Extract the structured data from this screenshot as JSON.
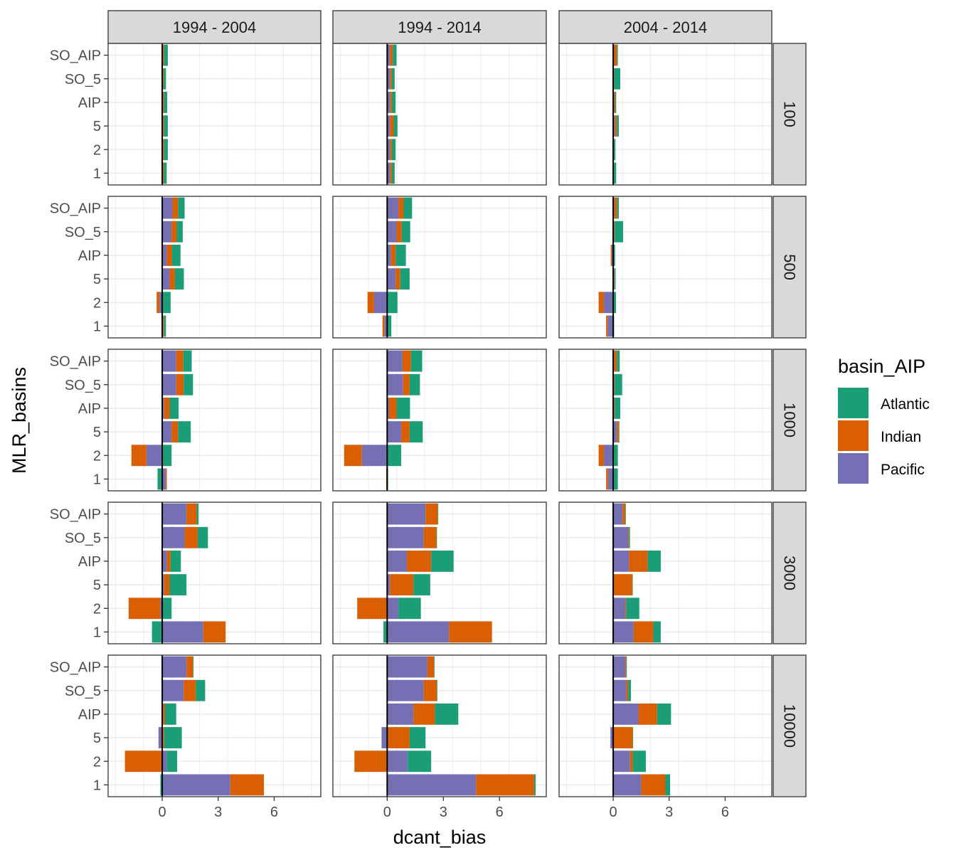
{
  "chart_data": {
    "type": "bar",
    "orientation": "horizontal",
    "stacked": true,
    "xlabel": "dcant_bias",
    "ylabel": "MLR_basins",
    "xlim": [
      -2.9,
      8.5
    ],
    "x_ticks": [
      0,
      3,
      6
    ],
    "grid": true,
    "legend": {
      "title": "basin_AIP",
      "position": "right",
      "items": [
        "Atlantic",
        "Indian",
        "Pacific"
      ]
    },
    "colors": {
      "Atlantic": "#1b9e77",
      "Indian": "#d95f02",
      "Pacific": "#7570b3"
    },
    "categories": [
      "SO_AIP",
      "SO_5",
      "AIP",
      "5",
      "2",
      "1"
    ],
    "series_order": [
      "Pacific",
      "Indian",
      "Atlantic"
    ],
    "col_facets": [
      "1994 - 2004",
      "1994 - 2014",
      "2004 - 2014"
    ],
    "row_facets": [
      "100",
      "500",
      "1000",
      "3000",
      "10000"
    ],
    "panels": [
      {
        "row": "100",
        "col": "1994 - 2004",
        "values": {
          "SO_AIP": {
            "Pacific": 0.03,
            "Indian": 0.07,
            "Atlantic": 0.2
          },
          "SO_5": {
            "Pacific": 0.03,
            "Indian": 0.05,
            "Atlantic": 0.12
          },
          "AIP": {
            "Pacific": 0.03,
            "Indian": 0.07,
            "Atlantic": 0.17
          },
          "5": {
            "Pacific": 0.03,
            "Indian": 0.07,
            "Atlantic": 0.2
          },
          "2": {
            "Pacific": 0.03,
            "Indian": 0.07,
            "Atlantic": 0.2
          },
          "1": {
            "Pacific": 0.03,
            "Indian": 0.06,
            "Atlantic": 0.15
          }
        }
      },
      {
        "row": "100",
        "col": "1994 - 2014",
        "values": {
          "SO_AIP": {
            "Pacific": 0.15,
            "Indian": 0.15,
            "Atlantic": 0.2
          },
          "SO_5": {
            "Pacific": 0.15,
            "Indian": 0.1,
            "Atlantic": 0.15
          },
          "AIP": {
            "Pacific": 0.15,
            "Indian": 0.1,
            "Atlantic": 0.2
          },
          "5": {
            "Pacific": 0.15,
            "Indian": 0.2,
            "Atlantic": 0.2
          },
          "2": {
            "Pacific": 0.15,
            "Indian": 0.1,
            "Atlantic": 0.2
          },
          "1": {
            "Pacific": 0.15,
            "Indian": 0.1,
            "Atlantic": 0.15
          }
        }
      },
      {
        "row": "100",
        "col": "2004 - 2014",
        "values": {
          "SO_AIP": {
            "Pacific": 0.03,
            "Indian": 0.17,
            "Atlantic": 0.05
          },
          "SO_5": {
            "Pacific": 0.03,
            "Indian": 0.03,
            "Atlantic": 0.32
          },
          "AIP": {
            "Pacific": 0.03,
            "Indian": 0.08,
            "Atlantic": 0.05
          },
          "5": {
            "Pacific": 0.1,
            "Indian": 0.1,
            "Atlantic": 0.1
          },
          "2": {
            "Pacific": 0.02,
            "Indian": 0.02,
            "Atlantic": 0.08
          },
          "1": {
            "Pacific": 0.02,
            "Indian": 0.02,
            "Atlantic": 0.12
          }
        }
      },
      {
        "row": "500",
        "col": "1994 - 2004",
        "values": {
          "SO_AIP": {
            "Pacific": 0.55,
            "Indian": 0.3,
            "Atlantic": 0.35
          },
          "SO_5": {
            "Pacific": 0.5,
            "Indian": 0.28,
            "Atlantic": 0.32
          },
          "AIP": {
            "Pacific": 0.25,
            "Indian": 0.28,
            "Atlantic": 0.45
          },
          "5": {
            "Pacific": 0.4,
            "Indian": 0.28,
            "Atlantic": 0.48
          },
          "2": {
            "Pacific": -0.15,
            "Indian": -0.15,
            "Atlantic": 0.45
          },
          "1": {
            "Pacific": 0.05,
            "Indian": 0.05,
            "Atlantic": 0.1
          }
        }
      },
      {
        "row": "500",
        "col": "1994 - 2014",
        "values": {
          "SO_AIP": {
            "Pacific": 0.6,
            "Indian": 0.28,
            "Atlantic": 0.45
          },
          "SO_5": {
            "Pacific": 0.5,
            "Indian": 0.28,
            "Atlantic": 0.45
          },
          "AIP": {
            "Pacific": 0.2,
            "Indian": 0.25,
            "Atlantic": 0.55
          },
          "5": {
            "Pacific": 0.45,
            "Indian": 0.25,
            "Atlantic": 0.5
          },
          "2": {
            "Pacific": -0.7,
            "Indian": -0.35,
            "Atlantic": 0.55
          },
          "1": {
            "Pacific": -0.15,
            "Indian": -0.1,
            "Atlantic": 0.22
          }
        }
      },
      {
        "row": "500",
        "col": "2004 - 2014",
        "values": {
          "SO_AIP": {
            "Pacific": 0.05,
            "Indian": 0.15,
            "Atlantic": 0.1
          },
          "SO_5": {
            "Pacific": 0.03,
            "Indian": 0.05,
            "Atlantic": 0.45
          },
          "AIP": {
            "Pacific": -0.08,
            "Indian": -0.05,
            "Atlantic": 0.1
          },
          "5": {
            "Pacific": 0.05,
            "Indian": 0.03,
            "Atlantic": 0.05
          },
          "2": {
            "Pacific": -0.5,
            "Indian": -0.28,
            "Atlantic": 0.15
          },
          "1": {
            "Pacific": -0.3,
            "Indian": -0.08,
            "Atlantic": 0.05
          }
        }
      },
      {
        "row": "1000",
        "col": "1994 - 2004",
        "values": {
          "SO_AIP": {
            "Pacific": 0.75,
            "Indian": 0.38,
            "Atlantic": 0.45
          },
          "SO_5": {
            "Pacific": 0.75,
            "Indian": 0.4,
            "Atlantic": 0.5
          },
          "AIP": {
            "Pacific": 0.1,
            "Indian": 0.3,
            "Atlantic": 0.48
          },
          "5": {
            "Pacific": 0.5,
            "Indian": 0.35,
            "Atlantic": 0.68
          },
          "2": {
            "Pacific": -0.85,
            "Indian": -0.8,
            "Atlantic": 0.5
          },
          "1": {
            "Pacific": 0.2,
            "Indian": 0.05,
            "Atlantic": -0.25
          }
        }
      },
      {
        "row": "1000",
        "col": "1994 - 2014",
        "values": {
          "SO_AIP": {
            "Pacific": 0.82,
            "Indian": 0.45,
            "Atlantic": 0.6
          },
          "SO_5": {
            "Pacific": 0.85,
            "Indian": 0.35,
            "Atlantic": 0.55
          },
          "AIP": {
            "Pacific": 0.1,
            "Indian": 0.4,
            "Atlantic": 0.72
          },
          "5": {
            "Pacific": 0.75,
            "Indian": 0.45,
            "Atlantic": 0.7
          },
          "2": {
            "Pacific": -1.35,
            "Indian": -0.95,
            "Atlantic": 0.75
          },
          "1": {
            "Pacific": 0.03,
            "Indian": -0.05,
            "Atlantic": 0.02
          }
        }
      },
      {
        "row": "1000",
        "col": "2004 - 2014",
        "values": {
          "SO_AIP": {
            "Pacific": 0.05,
            "Indian": 0.15,
            "Atlantic": 0.15
          },
          "SO_5": {
            "Pacific": 0.03,
            "Indian": 0.05,
            "Atlantic": 0.4
          },
          "AIP": {
            "Pacific": 0.03,
            "Indian": 0.05,
            "Atlantic": 0.3
          },
          "5": {
            "Pacific": 0.2,
            "Indian": 0.1,
            "Atlantic": 0.03
          },
          "2": {
            "Pacific": -0.5,
            "Indian": -0.28,
            "Atlantic": 0.25
          },
          "1": {
            "Pacific": -0.28,
            "Indian": -0.1,
            "Atlantic": 0.25
          }
        }
      },
      {
        "row": "3000",
        "col": "1994 - 2004",
        "values": {
          "SO_AIP": {
            "Pacific": 1.3,
            "Indian": 0.55,
            "Atlantic": 0.1
          },
          "SO_5": {
            "Pacific": 1.2,
            "Indian": 0.7,
            "Atlantic": 0.55
          },
          "AIP": {
            "Pacific": 0.25,
            "Indian": 0.2,
            "Atlantic": 0.55
          },
          "5": {
            "Pacific": 0.1,
            "Indian": 0.3,
            "Atlantic": 0.9
          },
          "2": {
            "Pacific": -0.1,
            "Indian": -1.7,
            "Atlantic": 0.5
          },
          "1": {
            "Pacific": 2.2,
            "Indian": 1.2,
            "Atlantic": -0.55
          }
        }
      },
      {
        "row": "3000",
        "col": "1994 - 2014",
        "values": {
          "SO_AIP": {
            "Pacific": 2.05,
            "Indian": 0.65,
            "Atlantic": 0.03
          },
          "SO_5": {
            "Pacific": 1.95,
            "Indian": 0.68,
            "Atlantic": 0.03
          },
          "AIP": {
            "Pacific": 1.05,
            "Indian": 1.3,
            "Atlantic": 1.2
          },
          "5": {
            "Pacific": 0.15,
            "Indian": 1.25,
            "Atlantic": 0.9
          },
          "2": {
            "Pacific": 0.6,
            "Indian": -1.6,
            "Atlantic": 1.2
          },
          "1": {
            "Pacific": 3.3,
            "Indian": 2.3,
            "Atlantic": -0.2
          }
        }
      },
      {
        "row": "3000",
        "col": "2004 - 2014",
        "values": {
          "SO_AIP": {
            "Pacific": 0.5,
            "Indian": 0.15,
            "Atlantic": 0.03
          },
          "SO_5": {
            "Pacific": 0.8,
            "Indian": 0.05,
            "Atlantic": 0.05
          },
          "AIP": {
            "Pacific": 0.85,
            "Indian": 1.0,
            "Atlantic": 0.7
          },
          "5": {
            "Pacific": 0.03,
            "Indian": 1.0,
            "Atlantic": 0.02
          },
          "2": {
            "Pacific": 0.65,
            "Indian": 0.05,
            "Atlantic": 0.7
          },
          "1": {
            "Pacific": 1.1,
            "Indian": 1.05,
            "Atlantic": 0.4
          }
        }
      },
      {
        "row": "10000",
        "col": "1994 - 2004",
        "values": {
          "SO_AIP": {
            "Pacific": 1.3,
            "Indian": 0.35,
            "Atlantic": 0.03
          },
          "SO_5": {
            "Pacific": 1.15,
            "Indian": 0.65,
            "Atlantic": 0.5
          },
          "AIP": {
            "Pacific": 0.05,
            "Indian": 0.1,
            "Atlantic": 0.6
          },
          "5": {
            "Pacific": -0.2,
            "Indian": 0.1,
            "Atlantic": 0.95
          },
          "2": {
            "Pacific": 0.25,
            "Indian": -2.0,
            "Atlantic": 0.55
          },
          "1": {
            "Pacific": 3.65,
            "Indian": 1.8,
            "Atlantic": -0.1
          }
        }
      },
      {
        "row": "10000",
        "col": "1994 - 2014",
        "values": {
          "SO_AIP": {
            "Pacific": 2.15,
            "Indian": 0.35,
            "Atlantic": 0.03
          },
          "SO_5": {
            "Pacific": 1.95,
            "Indian": 0.7,
            "Atlantic": 0.03
          },
          "AIP": {
            "Pacific": 1.4,
            "Indian": 1.15,
            "Atlantic": 1.25
          },
          "5": {
            "Pacific": -0.3,
            "Indian": 1.2,
            "Atlantic": 0.85
          },
          "2": {
            "Pacific": 1.1,
            "Indian": -1.75,
            "Atlantic": 1.25
          },
          "1": {
            "Pacific": 4.75,
            "Indian": 3.1,
            "Atlantic": 0.08
          }
        }
      },
      {
        "row": "10000",
        "col": "2004 - 2014",
        "values": {
          "SO_AIP": {
            "Pacific": 0.65,
            "Indian": 0.05,
            "Atlantic": 0.03
          },
          "SO_5": {
            "Pacific": 0.7,
            "Indian": 0.1,
            "Atlantic": 0.15
          },
          "AIP": {
            "Pacific": 1.35,
            "Indian": 1.0,
            "Atlantic": 0.75
          },
          "5": {
            "Pacific": -0.15,
            "Indian": 1.05,
            "Atlantic": 0.02
          },
          "2": {
            "Pacific": 0.9,
            "Indian": 0.15,
            "Atlantic": 0.7
          },
          "1": {
            "Pacific": 1.5,
            "Indian": 1.3,
            "Atlantic": 0.25
          }
        }
      }
    ]
  }
}
